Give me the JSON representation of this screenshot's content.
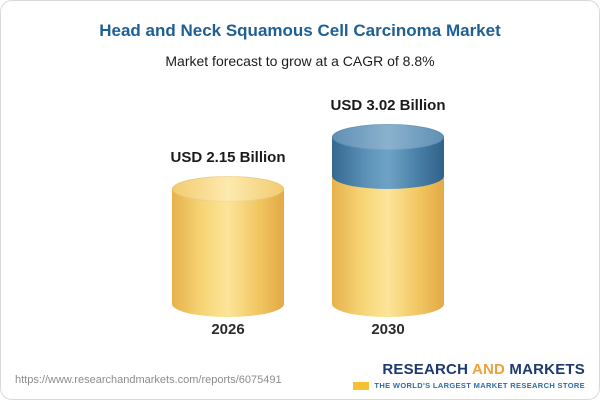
{
  "header": {
    "title": "Head and Neck Squamous Cell Carcinoma Market",
    "subtitle": "Market forecast to grow at a CAGR of 8.8%"
  },
  "chart_data": {
    "type": "bar",
    "bar_style": "cylinder-3d",
    "categories": [
      "2026",
      "2030"
    ],
    "values": [
      2.15,
      3.02
    ],
    "value_labels": [
      "USD 2.15 Billion",
      "USD 3.02 Billion"
    ],
    "series_unit": "USD Billion",
    "cagr_percent": 8.8,
    "title": "Head and Neck Squamous Cell Carcinoma Market",
    "subtitle": "Market forecast to grow at a CAGR of 8.8%",
    "legend_position": "none",
    "grid": false,
    "colors": {
      "base_segment": "#F2C964",
      "growth_segment": "#477EA6",
      "title_text": "#1E5F94"
    },
    "notes": "2030 cylinder shows growth above the 2026 level as a blue top segment"
  },
  "footer": {
    "url": "https://www.researchandmarkets.com/reports/6075491",
    "logo": {
      "word1": "RESEARCH",
      "word2": "AND",
      "word3": "MARKETS",
      "tagline": "THE WORLD'S LARGEST MARKET RESEARCH STORE"
    }
  }
}
